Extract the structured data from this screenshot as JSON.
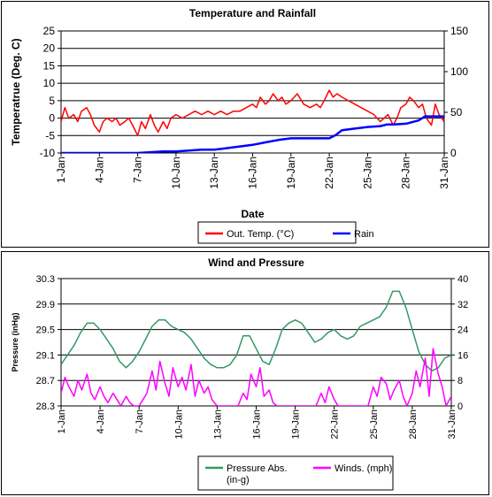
{
  "chart_data": [
    {
      "type": "line",
      "title": "Temperature and Rainfall",
      "xlabel": "Date",
      "ylabel": "Temperatrue (Deg. C)",
      "y2label": "",
      "x_ticks": [
        "1-Jan",
        "4-Jan",
        "7-Jan",
        "10-Jan",
        "13-Jan",
        "16-Jan",
        "19-Jan",
        "22-Jan",
        "25-Jan",
        "28-Jan",
        "31-Jan"
      ],
      "xlim": [
        1,
        31
      ],
      "ylim": [
        -10,
        25
      ],
      "y_ticks": [
        -10,
        -5,
        0,
        5,
        10,
        15,
        20,
        25
      ],
      "y2lim": [
        0,
        150
      ],
      "y2_ticks": [
        0,
        50,
        100,
        150
      ],
      "grid": true,
      "legend": "bottom",
      "series": [
        {
          "name": "Out. Temp. (°C)",
          "axis": "left",
          "color": "#ff0000",
          "x": [
            1.0,
            1.3,
            1.6,
            2.0,
            2.3,
            2.6,
            3.0,
            3.3,
            3.6,
            4.0,
            4.3,
            4.6,
            5.0,
            5.3,
            5.6,
            6.0,
            6.3,
            6.6,
            7.0,
            7.3,
            7.6,
            8.0,
            8.3,
            8.6,
            9.0,
            9.3,
            9.6,
            10.0,
            10.5,
            11.0,
            11.5,
            12.0,
            12.5,
            13.0,
            13.5,
            14.0,
            14.5,
            15.0,
            15.5,
            16.0,
            16.3,
            16.6,
            17.0,
            17.3,
            17.6,
            18.0,
            18.3,
            18.6,
            19.0,
            19.5,
            20.0,
            20.5,
            21.0,
            21.3,
            21.6,
            22.0,
            22.3,
            22.6,
            23.0,
            23.5,
            24.0,
            24.5,
            25.0,
            25.5,
            26.0,
            26.3,
            26.6,
            27.0,
            27.3,
            27.6,
            28.0,
            28.3,
            28.6,
            29.0,
            29.3,
            29.6,
            30.0,
            30.3,
            30.6,
            31.0
          ],
          "y": [
            -1,
            3,
            0,
            1,
            -1,
            2,
            3,
            1,
            -2,
            -4,
            -1,
            0,
            -1,
            0,
            -2,
            -1,
            0,
            -2,
            -5,
            -1,
            -3,
            1,
            -2,
            -4,
            -1,
            -3,
            0,
            1,
            0,
            1,
            2,
            1,
            2,
            1,
            2,
            1,
            2,
            2,
            3,
            4,
            3,
            6,
            4,
            5,
            7,
            5,
            6,
            4,
            5,
            7,
            4,
            3,
            4,
            3,
            5,
            8,
            6,
            7,
            6,
            5,
            4,
            3,
            2,
            1,
            -1,
            0,
            1,
            -2,
            0,
            3,
            4,
            6,
            5,
            3,
            4,
            0,
            -2,
            4,
            1,
            -1
          ]
        },
        {
          "name": "Rain",
          "axis": "right",
          "color": "#0000ff",
          "x": [
            1,
            7,
            8,
            9,
            10,
            11,
            12,
            13,
            14,
            15,
            16,
            17,
            18,
            19,
            20,
            21,
            22,
            22.5,
            23,
            24,
            25,
            26,
            26.5,
            27,
            28,
            29,
            29.5,
            30,
            31
          ],
          "y": [
            0,
            0,
            1,
            2,
            2,
            3,
            4,
            4,
            6,
            8,
            10,
            13,
            16,
            18,
            18,
            18,
            18,
            22,
            28,
            30,
            32,
            33,
            35,
            35,
            36,
            40,
            45,
            45,
            45
          ]
        }
      ]
    },
    {
      "type": "line",
      "title": "Wind and Pressure",
      "xlabel": "Date",
      "ylabel": "Pressure (inHg)",
      "y2label": "",
      "x_ticks": [
        "1-Jan",
        "4-Jan",
        "7-Jan",
        "10-Jan",
        "13-Jan",
        "16-Jan",
        "19-Jan",
        "22-Jan",
        "25-Jan",
        "28-Jan",
        "31-Jan"
      ],
      "xlim": [
        1,
        31
      ],
      "ylim": [
        28.3,
        30.3
      ],
      "y_ticks": [
        "28.3",
        "28.7",
        "29.1",
        "29.5",
        "29.9",
        "30.3"
      ],
      "y2lim": [
        0,
        40
      ],
      "y2_ticks": [
        0,
        8,
        16,
        24,
        32,
        40
      ],
      "grid": true,
      "legend": "bottom",
      "series": [
        {
          "name": "Pressure Abs. (in-g)",
          "axis": "left",
          "color": "#339966",
          "x": [
            1.0,
            1.5,
            2.0,
            2.5,
            3.0,
            3.5,
            4.0,
            4.5,
            5.0,
            5.5,
            6.0,
            6.5,
            7.0,
            7.5,
            8.0,
            8.5,
            9.0,
            9.5,
            10.0,
            10.5,
            11.0,
            11.5,
            12.0,
            12.5,
            13.0,
            13.5,
            14.0,
            14.5,
            15.0,
            15.5,
            16.0,
            16.5,
            17.0,
            17.5,
            18.0,
            18.5,
            19.0,
            19.5,
            20.0,
            20.5,
            21.0,
            21.5,
            22.0,
            22.5,
            23.0,
            23.5,
            24.0,
            24.5,
            25.0,
            25.5,
            26.0,
            26.5,
            27.0,
            27.5,
            28.0,
            28.5,
            29.0,
            29.5,
            30.0,
            30.5,
            31.0
          ],
          "y": [
            28.95,
            29.1,
            29.25,
            29.45,
            29.6,
            29.6,
            29.5,
            29.35,
            29.2,
            29.0,
            28.9,
            29.0,
            29.15,
            29.35,
            29.55,
            29.65,
            29.65,
            29.55,
            29.5,
            29.45,
            29.35,
            29.2,
            29.05,
            28.95,
            28.9,
            28.9,
            28.95,
            29.1,
            29.4,
            29.4,
            29.2,
            29.0,
            28.95,
            29.2,
            29.5,
            29.6,
            29.65,
            29.6,
            29.45,
            29.3,
            29.35,
            29.45,
            29.5,
            29.4,
            29.35,
            29.4,
            29.55,
            29.6,
            29.65,
            29.7,
            29.85,
            30.1,
            30.1,
            29.85,
            29.5,
            29.15,
            28.95,
            28.85,
            28.9,
            29.05,
            29.1
          ]
        },
        {
          "name": "Winds. (mph)",
          "axis": "right",
          "color": "#ff00ff",
          "x": [
            1.0,
            1.3,
            1.6,
            2.0,
            2.3,
            2.6,
            3.0,
            3.3,
            3.6,
            4.0,
            4.3,
            4.6,
            5.0,
            5.3,
            5.6,
            6.0,
            6.3,
            6.6,
            7.0,
            7.3,
            7.6,
            8.0,
            8.3,
            8.6,
            9.0,
            9.3,
            9.6,
            10.0,
            10.3,
            10.6,
            11.0,
            11.3,
            11.6,
            12.0,
            12.3,
            12.6,
            13.0,
            13.3,
            13.6,
            14.0,
            14.3,
            14.6,
            15.0,
            15.3,
            15.6,
            16.0,
            16.3,
            16.6,
            17.0,
            17.3,
            17.6,
            18.0,
            18.3,
            18.6,
            19.0,
            19.3,
            19.6,
            20.0,
            20.3,
            20.6,
            21.0,
            21.3,
            21.6,
            22.0,
            22.3,
            22.6,
            23.0,
            23.3,
            23.6,
            24.0,
            24.3,
            24.6,
            25.0,
            25.3,
            25.6,
            26.0,
            26.3,
            26.6,
            27.0,
            27.3,
            27.6,
            28.0,
            28.3,
            28.6,
            29.0,
            29.3,
            29.6,
            30.0,
            30.3,
            30.6,
            31.0
          ],
          "y": [
            4,
            9,
            6,
            3,
            8,
            5,
            10,
            4,
            2,
            6,
            3,
            1,
            4,
            2,
            0,
            3,
            1,
            0,
            0,
            2,
            4,
            11,
            5,
            14,
            7,
            3,
            12,
            6,
            9,
            5,
            13,
            3,
            8,
            4,
            6,
            2,
            0,
            0,
            0,
            0,
            0,
            0,
            4,
            2,
            10,
            6,
            12,
            3,
            5,
            1,
            0,
            0,
            0,
            0,
            0,
            0,
            0,
            0,
            0,
            0,
            4,
            1,
            6,
            2,
            0,
            0,
            0,
            0,
            0,
            0,
            0,
            0,
            6,
            3,
            9,
            7,
            2,
            5,
            8,
            3,
            0,
            4,
            11,
            6,
            15,
            3,
            18,
            10,
            6,
            0,
            3
          ]
        }
      ]
    }
  ]
}
